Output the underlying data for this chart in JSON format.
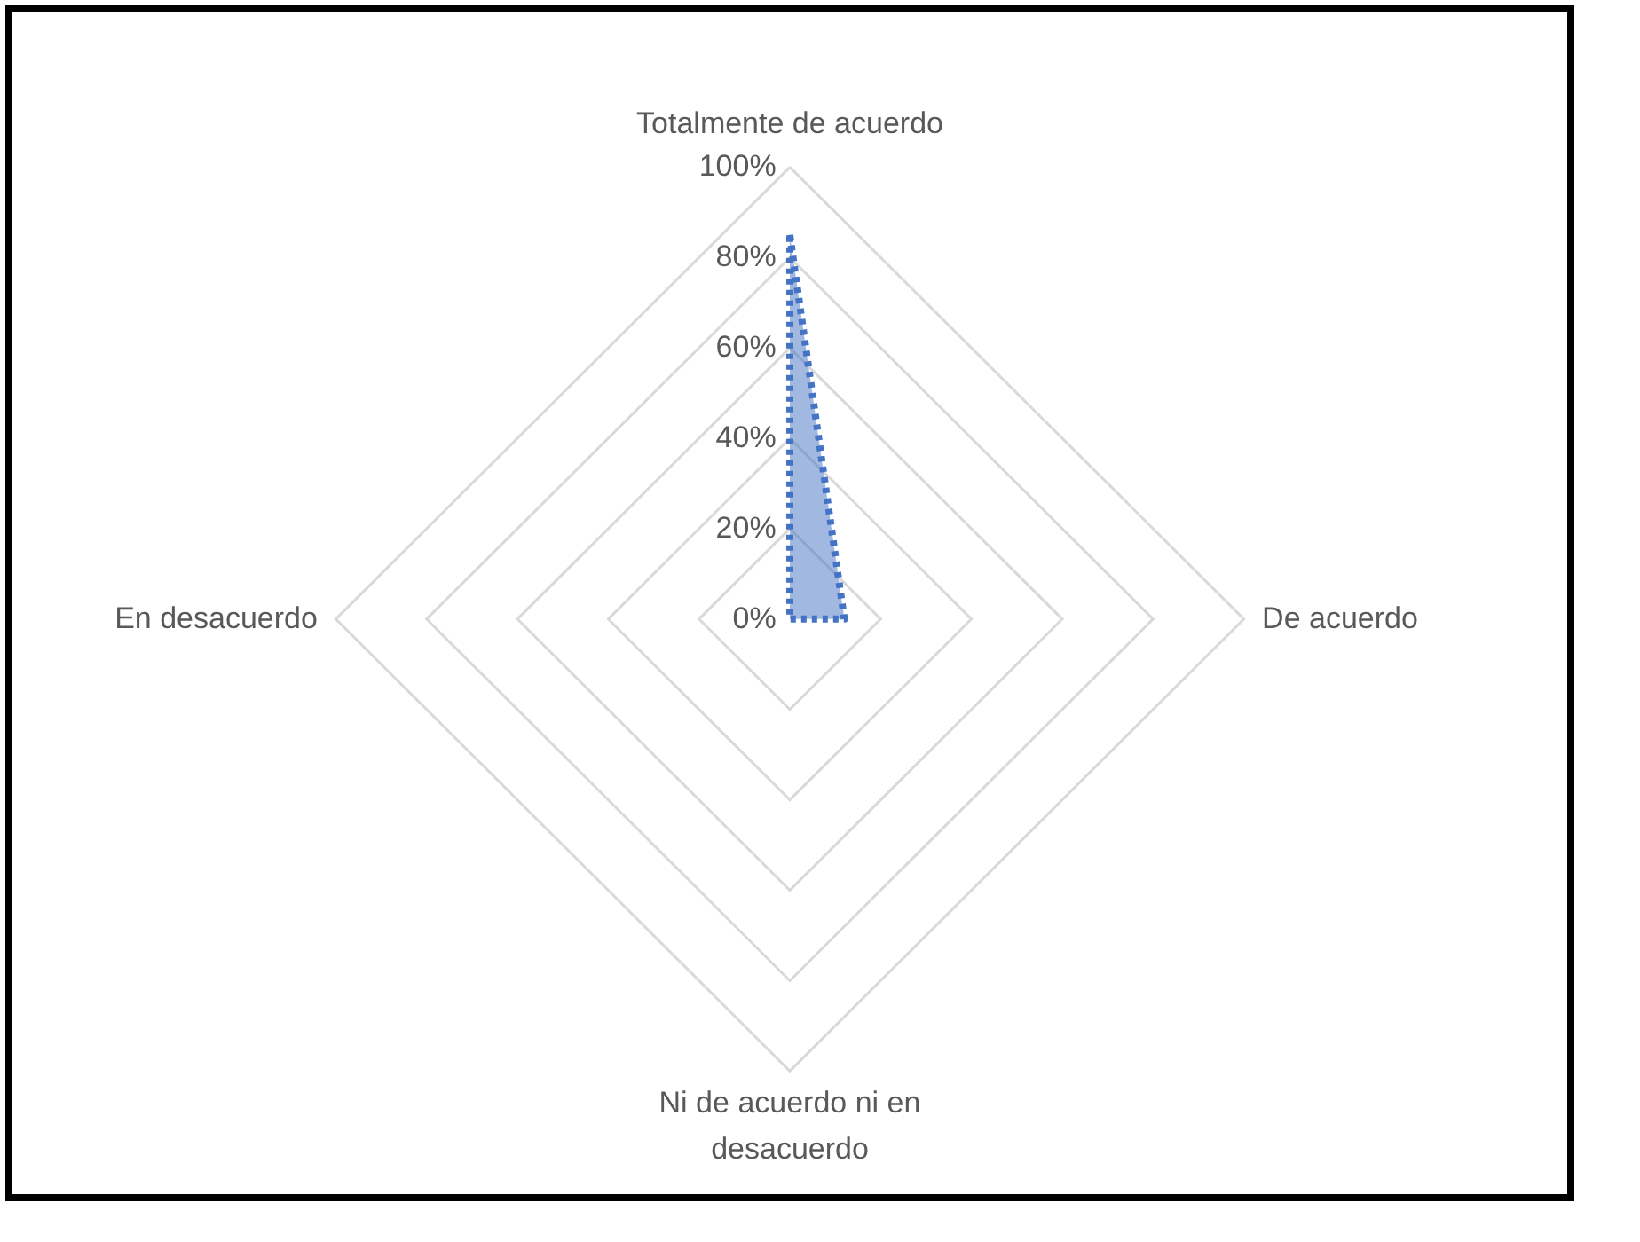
{
  "chart_data": {
    "type": "radar",
    "categories": [
      "Totalmente de acuerdo",
      "De acuerdo",
      "Ni de acuerdo ni en desacuerdo",
      "En desacuerdo"
    ],
    "series": [
      {
        "color": "#4472c4",
        "values": [
          85,
          12,
          0,
          0
        ]
      }
    ],
    "ylim": [
      0,
      100
    ],
    "yticks": [
      {
        "value": 0,
        "label": "0%"
      },
      {
        "value": 20,
        "label": "20%"
      },
      {
        "value": 40,
        "label": "40%"
      },
      {
        "value": 60,
        "label": "60%"
      },
      {
        "value": 80,
        "label": "80%"
      },
      {
        "value": 100,
        "label": "100%"
      }
    ],
    "grid": true,
    "marker": "none",
    "line_style": "dotted"
  }
}
